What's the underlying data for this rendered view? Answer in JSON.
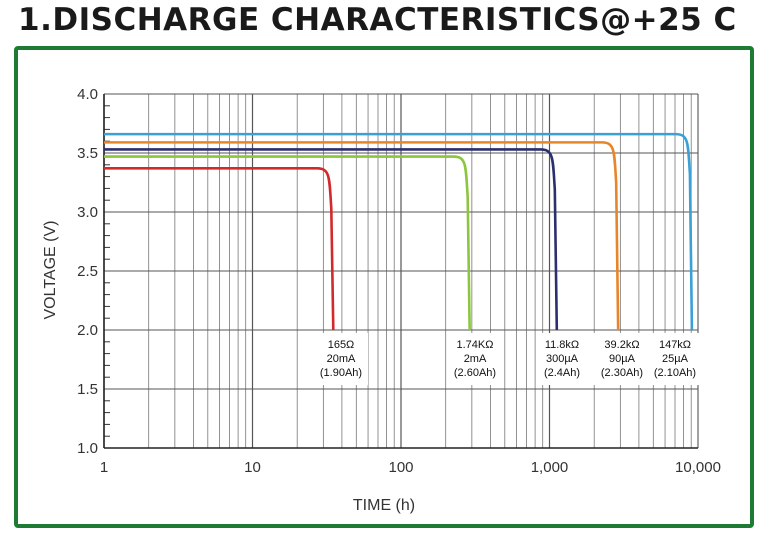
{
  "title": "1.DISCHARGE CHARACTERISTICS@+25 C",
  "colors": {
    "frame": "#1f7a34",
    "red": "#d22a2a",
    "green": "#8cc63f",
    "navy": "#2b2f6e",
    "orange": "#e8852a",
    "blue": "#3aa0d6"
  },
  "chart_data": {
    "type": "line",
    "xlabel": "TIME (h)",
    "ylabel": "VOLTAGE (V)",
    "x_scale": "log",
    "xlim": [
      1,
      10000
    ],
    "ylim": [
      1.0,
      4.0
    ],
    "grid": true,
    "x_ticks": [
      "1",
      "10",
      "100",
      "1,000",
      "10,000"
    ],
    "y_ticks": [
      "4.0",
      "3.5",
      "3.0",
      "2.5",
      "2.0",
      "1.5",
      "1.0"
    ],
    "series": [
      {
        "color": "#d22a2a",
        "plateau_voltage": 3.37,
        "end_time_h": 35,
        "label": [
          "165Ω",
          "20mA",
          "(1.90Ah)"
        ]
      },
      {
        "color": "#8cc63f",
        "plateau_voltage": 3.47,
        "end_time_h": 290,
        "label": [
          "1.74KΩ",
          "2mA",
          "(2.60Ah)"
        ]
      },
      {
        "color": "#2b2f6e",
        "plateau_voltage": 3.53,
        "end_time_h": 1120,
        "label": [
          "11.8kΩ",
          "300µA",
          "(2.4Ah)"
        ]
      },
      {
        "color": "#e8852a",
        "plateau_voltage": 3.59,
        "end_time_h": 2900,
        "label": [
          "39.2kΩ",
          "90µA",
          "(2.30Ah)"
        ]
      },
      {
        "color": "#3aa0d6",
        "plateau_voltage": 3.66,
        "end_time_h": 9100,
        "label": [
          "147kΩ",
          "25µA",
          "(2.10Ah)"
        ]
      }
    ]
  }
}
